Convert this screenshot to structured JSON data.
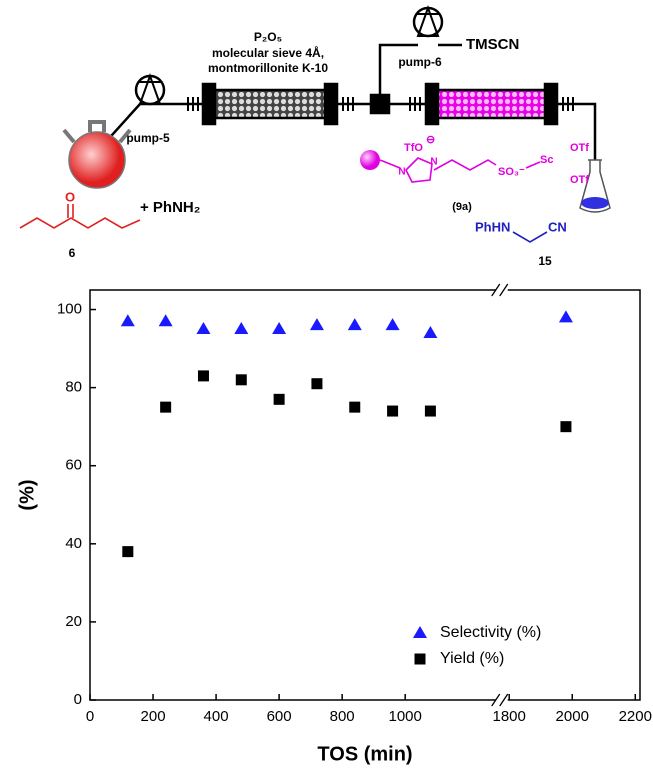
{
  "diagram": {
    "reagent_column": [
      "P₂O₅",
      "molecular sieve 4Å,",
      "montmorillonite K-10"
    ],
    "pump_a": "pump-5",
    "pump_b": "pump-6",
    "reagent_b": "TMSCN",
    "ketone_o": "O",
    "ketone_id": "6",
    "amine": "+ PhNH₂",
    "catalyst": {
      "anion": "TfO",
      "anion_charge": "⊖",
      "n1": "N",
      "n2": "N",
      "sulfonate": "SO₃⁻",
      "metal": "Sc",
      "otf1": "OTf",
      "otf2": "OTf",
      "id": "(9a)"
    },
    "product": {
      "amine": "PhHN",
      "nitrile": "CN",
      "id": "15"
    }
  },
  "chart_data": {
    "type": "scatter",
    "xlabel": "TOS (min)",
    "ylabel": "(%)",
    "xlim": [
      0,
      2215
    ],
    "xbreak": [
      1300,
      1770
    ],
    "ylim": [
      0,
      105
    ],
    "xticks": [
      0,
      200,
      400,
      600,
      800,
      1000,
      1800,
      2000,
      2200
    ],
    "yticks": [
      0,
      20,
      40,
      60,
      80,
      100
    ],
    "grid": false,
    "legend": "lower right",
    "series": [
      {
        "name": "Selectivity (%)",
        "color": "#1a1aff",
        "marker": "triangle",
        "x": [
          120,
          240,
          360,
          480,
          600,
          720,
          840,
          960,
          1080,
          1980
        ],
        "values": [
          97,
          97,
          95,
          95,
          95,
          96,
          96,
          96,
          94,
          98
        ]
      },
      {
        "name": "Yield (%)",
        "color": "#000000",
        "marker": "square",
        "x": [
          120,
          240,
          360,
          480,
          600,
          720,
          840,
          960,
          1080,
          1980
        ],
        "values": [
          38,
          75,
          83,
          82,
          77,
          81,
          75,
          74,
          74,
          70
        ]
      }
    ]
  }
}
